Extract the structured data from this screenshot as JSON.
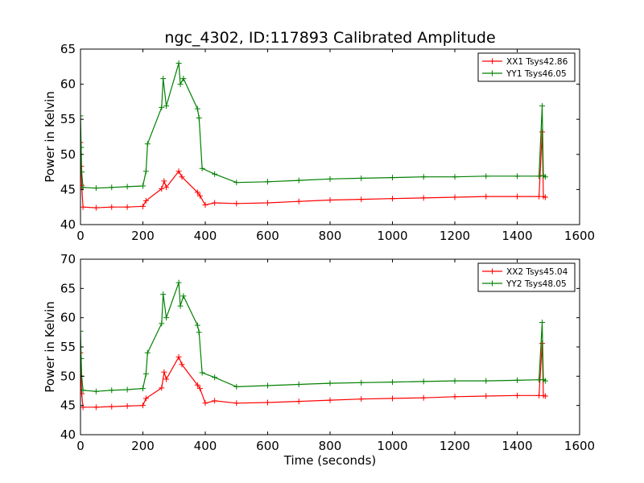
{
  "title": "ngc_4302, ID:117893 Calibrated Amplitude",
  "colors": {
    "xx": "#ff0000",
    "yy": "#008000",
    "axes": "#000000"
  },
  "chart_data": [
    {
      "type": "line",
      "ylabel": "Power in Kelvin",
      "xlabel": "",
      "xlim": [
        0,
        1600
      ],
      "ylim": [
        40,
        65
      ],
      "xticks": [
        0,
        200,
        400,
        600,
        800,
        1000,
        1200,
        1400,
        1600
      ],
      "yticks": [
        40,
        45,
        50,
        55,
        60,
        65
      ],
      "legend_position": "top-right",
      "marker": "plus",
      "series": [
        {
          "name": "XX1 Tsys42.86",
          "color": "#ff0000",
          "x": [
            0,
            2,
            4,
            8,
            50,
            100,
            150,
            200,
            210,
            260,
            268,
            275,
            315,
            325,
            375,
            383,
            400,
            430,
            500,
            600,
            700,
            800,
            900,
            1000,
            1100,
            1200,
            1300,
            1400,
            1470,
            1480,
            1484,
            1490
          ],
          "y": [
            51.7,
            48.3,
            45.6,
            42.5,
            42.4,
            42.5,
            42.5,
            42.6,
            43.4,
            45.1,
            46.2,
            45.3,
            47.6,
            46.8,
            44.6,
            44.1,
            42.8,
            43.1,
            43.0,
            43.1,
            43.3,
            43.5,
            43.6,
            43.7,
            43.8,
            43.9,
            44.0,
            44.0,
            44.0,
            53.2,
            44.0,
            43.9
          ]
        },
        {
          "name": "YY1 Tsys46.05",
          "color": "#008000",
          "x": [
            0,
            2,
            4,
            8,
            50,
            100,
            150,
            200,
            210,
            215,
            260,
            265,
            275,
            315,
            320,
            330,
            375,
            380,
            390,
            430,
            500,
            600,
            700,
            800,
            900,
            1000,
            1100,
            1200,
            1300,
            1400,
            1470,
            1480,
            1484,
            1490
          ],
          "y": [
            55.5,
            51.0,
            47.5,
            45.3,
            45.2,
            45.3,
            45.4,
            45.5,
            47.6,
            51.5,
            56.7,
            60.8,
            56.9,
            63.0,
            60.0,
            60.8,
            56.5,
            55.2,
            48.0,
            47.2,
            46.0,
            46.1,
            46.3,
            46.5,
            46.6,
            46.7,
            46.8,
            46.8,
            46.9,
            46.9,
            46.9,
            56.9,
            47.0,
            46.8
          ]
        }
      ]
    },
    {
      "type": "line",
      "ylabel": "Power in Kelvin",
      "xlabel": "Time (seconds)",
      "xlim": [
        0,
        1600
      ],
      "ylim": [
        40,
        70
      ],
      "xticks": [
        0,
        200,
        400,
        600,
        800,
        1000,
        1200,
        1400,
        1600
      ],
      "yticks": [
        40,
        45,
        50,
        55,
        60,
        65,
        70
      ],
      "legend_position": "top-right",
      "marker": "plus",
      "series": [
        {
          "name": "XX2 Tsys45.04",
          "color": "#ff0000",
          "x": [
            0,
            2,
            4,
            8,
            50,
            100,
            150,
            200,
            210,
            260,
            268,
            275,
            315,
            325,
            375,
            383,
            400,
            430,
            500,
            600,
            700,
            800,
            900,
            1000,
            1100,
            1200,
            1300,
            1400,
            1470,
            1480,
            1484,
            1490
          ],
          "y": [
            54.0,
            50.0,
            47.0,
            44.7,
            44.7,
            44.8,
            44.9,
            45.0,
            46.2,
            48.0,
            50.7,
            49.5,
            53.3,
            52.0,
            48.5,
            47.9,
            45.4,
            45.8,
            45.4,
            45.5,
            45.7,
            45.9,
            46.1,
            46.2,
            46.3,
            46.5,
            46.6,
            46.7,
            46.7,
            55.6,
            46.7,
            46.6
          ]
        },
        {
          "name": "YY2 Tsys48.05",
          "color": "#008000",
          "x": [
            0,
            2,
            4,
            8,
            50,
            100,
            150,
            200,
            210,
            215,
            260,
            265,
            275,
            315,
            320,
            330,
            375,
            380,
            390,
            430,
            500,
            600,
            700,
            800,
            900,
            1000,
            1100,
            1200,
            1300,
            1400,
            1470,
            1480,
            1484,
            1490
          ],
          "y": [
            57.7,
            53.0,
            50.0,
            47.6,
            47.4,
            47.6,
            47.7,
            47.9,
            50.4,
            54.0,
            59.0,
            64.0,
            60.0,
            66.0,
            62.0,
            63.7,
            58.7,
            57.5,
            50.6,
            49.8,
            48.2,
            48.4,
            48.6,
            48.8,
            48.9,
            49.0,
            49.1,
            49.2,
            49.2,
            49.3,
            49.4,
            59.2,
            49.4,
            49.2
          ]
        }
      ]
    }
  ]
}
